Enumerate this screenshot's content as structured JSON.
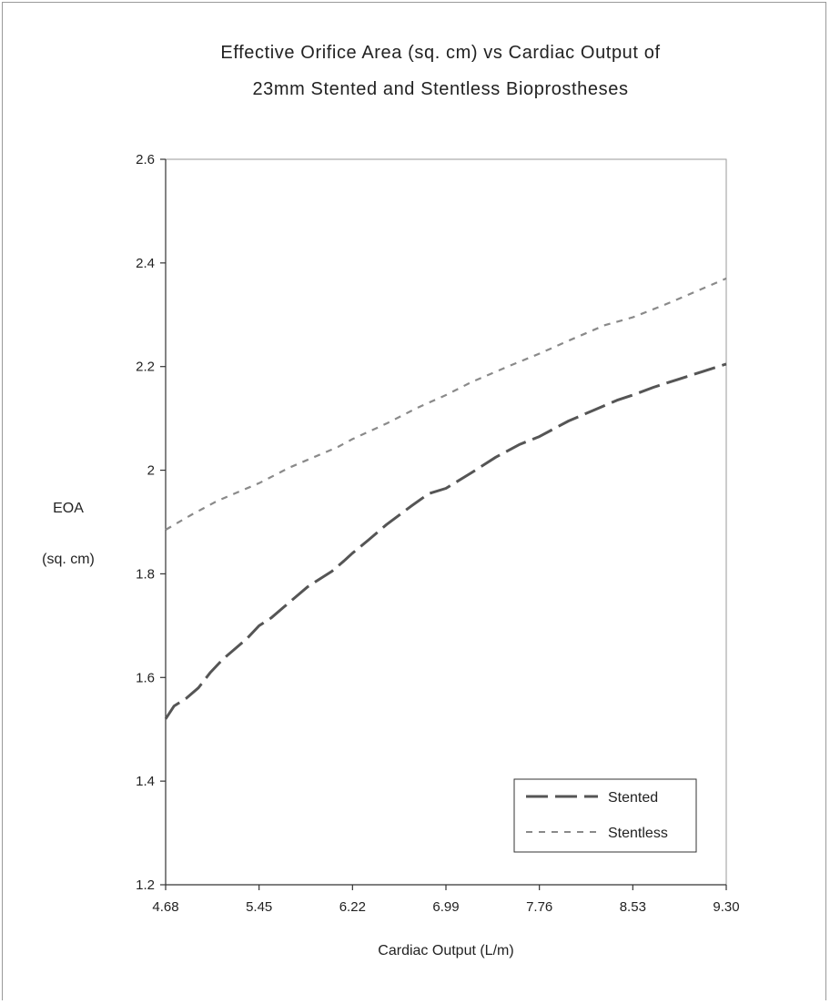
{
  "chart_data": {
    "type": "line",
    "title_line1": "Effective Orifice Area (sq. cm) vs Cardiac Output of",
    "title_line2": "23mm Stented and Stentless Bioprostheses",
    "xlabel": "Cardiac Output (L/m)",
    "ylabel_line1": "EOA",
    "ylabel_line2": "(sq. cm)",
    "xlim": [
      4.68,
      9.3
    ],
    "ylim": [
      1.2,
      2.6
    ],
    "x_ticks": [
      "4.68",
      "5.45",
      "6.22",
      "6.99",
      "7.76",
      "8.53",
      "9.30"
    ],
    "y_ticks": [
      "1.2",
      "1.4",
      "1.6",
      "1.8",
      "2",
      "2.2",
      "2.4",
      "2.6"
    ],
    "grid": false,
    "legend_position": "bottom-right",
    "series": [
      {
        "name": "Stented",
        "style": "long-dash",
        "color": "#555555",
        "x": [
          4.68,
          4.75,
          4.85,
          4.95,
          5.05,
          5.15,
          5.25,
          5.35,
          5.45,
          5.55,
          5.65,
          5.75,
          5.85,
          5.95,
          6.05,
          6.15,
          6.22,
          6.35,
          6.5,
          6.7,
          6.85,
          6.99,
          7.2,
          7.4,
          7.6,
          7.76,
          8.0,
          8.2,
          8.4,
          8.53,
          8.7,
          8.9,
          9.1,
          9.3
        ],
        "y": [
          1.52,
          1.545,
          1.56,
          1.58,
          1.61,
          1.635,
          1.655,
          1.675,
          1.7,
          1.715,
          1.735,
          1.755,
          1.775,
          1.79,
          1.805,
          1.825,
          1.84,
          1.865,
          1.895,
          1.93,
          1.955,
          1.965,
          1.995,
          2.025,
          2.05,
          2.065,
          2.095,
          2.115,
          2.135,
          2.145,
          2.16,
          2.175,
          2.19,
          2.205
        ]
      },
      {
        "name": "Stentless",
        "style": "short-dash",
        "color": "#8a8a8a",
        "x": [
          4.68,
          4.9,
          5.1,
          5.3,
          5.45,
          5.7,
          5.9,
          6.1,
          6.22,
          6.5,
          6.75,
          6.99,
          7.2,
          7.5,
          7.76,
          8.0,
          8.3,
          8.53,
          8.8,
          9.05,
          9.3
        ],
        "y": [
          1.885,
          1.915,
          1.94,
          1.96,
          1.975,
          2.005,
          2.025,
          2.045,
          2.06,
          2.09,
          2.12,
          2.145,
          2.17,
          2.2,
          2.225,
          2.25,
          2.28,
          2.295,
          2.32,
          2.345,
          2.37
        ]
      }
    ]
  }
}
